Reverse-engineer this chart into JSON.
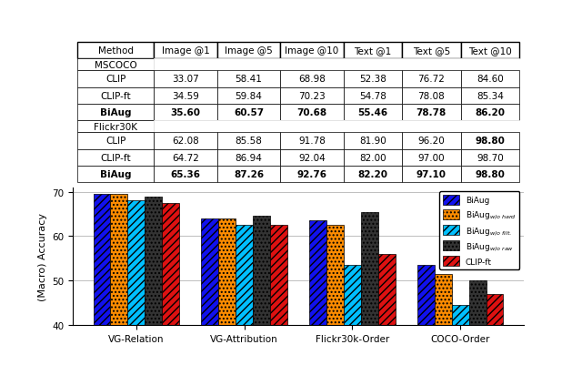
{
  "table": {
    "columns": [
      "Method",
      "Image @1",
      "Image @5",
      "Image @10",
      "Text @1",
      "Text @5",
      "Text @10"
    ],
    "mscoco": [
      [
        "CLIP",
        33.07,
        58.41,
        68.98,
        52.38,
        76.72,
        84.6
      ],
      [
        "CLIP-ft",
        34.59,
        59.84,
        70.23,
        54.78,
        78.08,
        85.34
      ],
      [
        "BiAug",
        35.6,
        60.57,
        70.68,
        55.46,
        78.78,
        86.2
      ]
    ],
    "flickr30k": [
      [
        "CLIP",
        62.08,
        85.58,
        91.78,
        81.9,
        96.2,
        98.8
      ],
      [
        "CLIP-ft",
        64.72,
        86.94,
        92.04,
        82.0,
        97.0,
        98.7
      ],
      [
        "BiAug",
        65.36,
        87.26,
        92.76,
        82.2,
        97.1,
        98.8
      ]
    ],
    "bold_row": [
      2,
      2
    ],
    "bold_cols_mscoco": [
      [
        0,
        1,
        2,
        3,
        4,
        5
      ],
      [
        0,
        1,
        2,
        3,
        4,
        5
      ]
    ],
    "bold_flickr_col": 5
  },
  "bar_chart": {
    "groups": [
      "VG-Relation",
      "VG-Attribution",
      "Flickr30k-Order",
      "COCO-Order"
    ],
    "series": [
      "BiAug",
      "BiAug_w/o_hard",
      "BiAug_w/o_filt.",
      "BiAug_w/o_raw",
      "CLIP-ft"
    ],
    "colors": [
      "#0000FF",
      "#FF8C00",
      "#00BFFF",
      "#222222",
      "#FF0000"
    ],
    "patterns": [
      "////",
      "....",
      "////",
      "....",
      "////"
    ],
    "data": [
      [
        69.5,
        69.5,
        68.0,
        69.0,
        67.5
      ],
      [
        64.0,
        64.0,
        62.5,
        64.5,
        62.5
      ],
      [
        63.5,
        62.5,
        53.5,
        65.5,
        56.0
      ],
      [
        53.5,
        51.5,
        44.5,
        50.0,
        47.0
      ]
    ],
    "ylabel": "(Macro) Accuracy",
    "ylim": [
      40,
      71
    ],
    "yticks": [
      40,
      50,
      60,
      70
    ],
    "legend_labels": [
      "BiAug",
      "BiAug$_{w/o\\,hard}$",
      "BiAug$_{w/o\\,filt.}$",
      "BiAug$_{w/o\\,raw}$",
      "CLIP-ft"
    ]
  },
  "background_color": "#FFFFFF"
}
